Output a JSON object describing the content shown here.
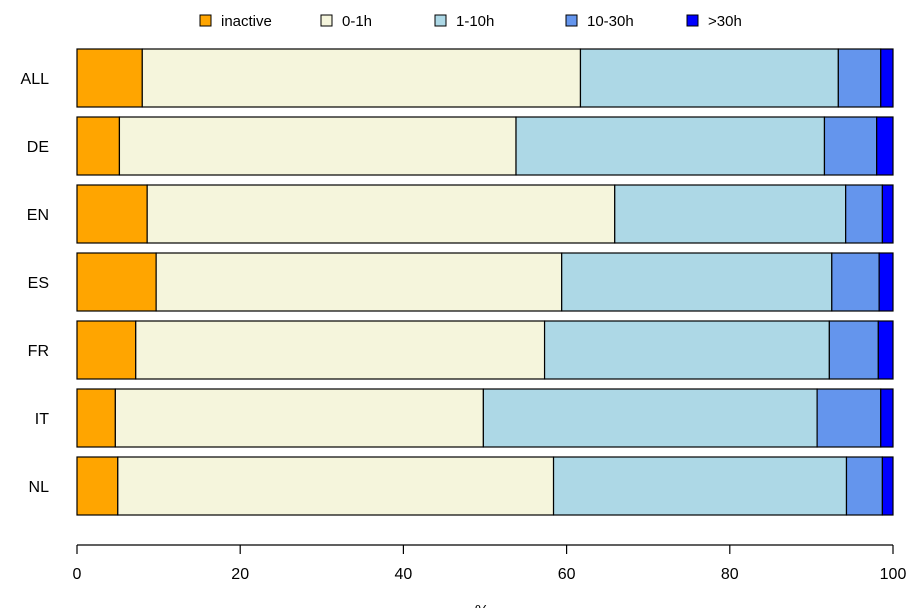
{
  "chart_data": {
    "type": "bar",
    "orientation": "horizontal",
    "stacked": true,
    "categories": [
      "ALL",
      "DE",
      "EN",
      "ES",
      "FR",
      "IT",
      "NL"
    ],
    "series": [
      {
        "name": "inactive",
        "color": "#FFA500",
        "values": [
          8.0,
          5.2,
          8.6,
          9.7,
          7.2,
          4.7,
          5.0
        ]
      },
      {
        "name": "0-1h",
        "color": "#F5F5DC",
        "values": [
          53.7,
          48.6,
          57.3,
          49.7,
          50.1,
          45.1,
          53.4
        ]
      },
      {
        "name": "1-10h",
        "color": "#ADD8E6",
        "values": [
          31.6,
          37.8,
          28.3,
          33.1,
          34.9,
          40.9,
          35.9
        ]
      },
      {
        "name": "10-30h",
        "color": "#6495ED",
        "values": [
          5.2,
          6.4,
          4.5,
          5.8,
          6.0,
          7.8,
          4.4
        ]
      },
      {
        "name": ">30h",
        "color": "#0000FF",
        "values": [
          1.5,
          2.0,
          1.3,
          1.7,
          1.8,
          1.5,
          1.3
        ]
      }
    ],
    "xlim": [
      0,
      100
    ],
    "xticks": [
      "0",
      "20",
      "40",
      "60",
      "80",
      "100"
    ],
    "xlabel": "%",
    "ylabel": "",
    "title": "",
    "legend_position": "top",
    "grid": false
  }
}
